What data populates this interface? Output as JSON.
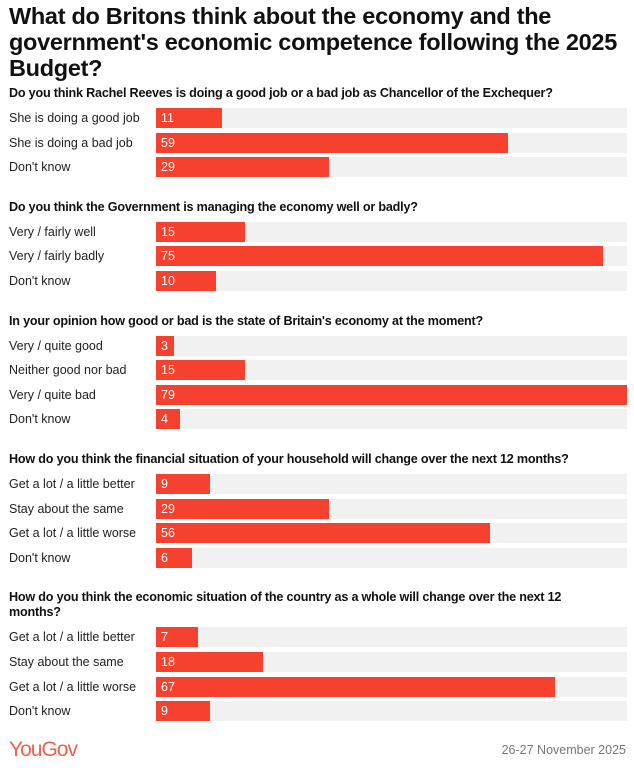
{
  "chart_data": {
    "type": "bar",
    "orientation": "horizontal",
    "title": "What do Britons think about the economy and the government's economic competence following the 2025 Budget?",
    "xlim": [
      0,
      79
    ],
    "bar_color": "#f5412d",
    "track_color": "#f1f1f1",
    "panels": [
      {
        "question": "Do you think Rachel Reeves is doing a good job or a bad job as Chancellor of the Exchequer?",
        "categories": [
          "She is doing a good job",
          "She is doing a bad job",
          "Don't know"
        ],
        "values": [
          11,
          59,
          29
        ]
      },
      {
        "question": "Do you think the Government is managing the economy well or badly?",
        "categories": [
          "Very / fairly well",
          "Very / fairly badly",
          "Don't know"
        ],
        "values": [
          15,
          75,
          10
        ]
      },
      {
        "question": "In your opinion how good or bad is the state of Britain's economy at the moment?",
        "categories": [
          "Very / quite good",
          "Neither good nor bad",
          "Very / quite bad",
          "Don't know"
        ],
        "values": [
          3,
          15,
          79,
          4
        ]
      },
      {
        "question": "How do you think the financial situation of your household will change over the next 12 months?",
        "categories": [
          "Get a lot / a little better",
          "Stay about the same",
          "Get a lot / a little worse",
          "Don't know"
        ],
        "values": [
          9,
          29,
          56,
          6
        ]
      },
      {
        "question": "How do you think the economic situation of the country as a whole will change over the next 12 months?",
        "categories": [
          "Get a lot / a little better",
          "Stay about the same",
          "Get a lot / a little worse",
          "Don't know"
        ],
        "values": [
          7,
          18,
          67,
          9
        ]
      }
    ]
  },
  "footer": {
    "logo": "YouGov",
    "date": "26-27 November 2025"
  },
  "brand_color": "#f0624d"
}
